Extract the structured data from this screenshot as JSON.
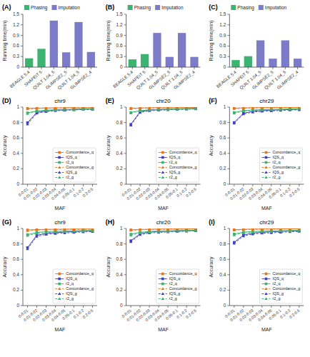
{
  "chart_data": [
    {
      "type": "bar",
      "annotations": [
        "(A)"
      ],
      "categories": [
        "BEAGLE 5.4",
        "SHAPEIT 5",
        "QUILT 1.04_5",
        "GLIMPSE2_5",
        "QUILT 1.04_5",
        "GLIMPSE2_4"
      ],
      "series": [
        {
          "name": "Phasing",
          "color": "#3CB371",
          "values": [
            0.25,
            0.52,
            0,
            0,
            0,
            0
          ]
        },
        {
          "name": "Imputation",
          "color": "#7B7BC8",
          "values": [
            0,
            0,
            1.32,
            0.42,
            1.28,
            0.43
          ]
        }
      ],
      "ylabel": "Running time(min)",
      "ylim": [
        0,
        1.5
      ],
      "yticks": [
        0,
        0.3,
        0.6,
        0.9,
        1.2,
        1.5
      ],
      "legend": "upper left",
      "grid": false
    },
    {
      "type": "bar",
      "annotations": [
        "(B)"
      ],
      "categories": [
        "BEAGLE 5.4",
        "SHAPEIT 5",
        "QUILT 1.04_5",
        "GLIMPSE2_5",
        "QUILT 1.04_5",
        "GLIMPSE2_4"
      ],
      "series": [
        {
          "name": "Phasing",
          "color": "#3CB371",
          "values": [
            0.22,
            0.37,
            0,
            0,
            0,
            0
          ]
        },
        {
          "name": "Imputation",
          "color": "#7B7BC8",
          "values": [
            0,
            0,
            0.97,
            0.29,
            0.97,
            0.29
          ]
        }
      ],
      "ylabel": "Running time(min)",
      "ylim": [
        0,
        1.5
      ],
      "yticks": [
        0,
        0.3,
        0.6,
        0.9,
        1.2,
        1.5
      ],
      "legend": "upper left",
      "grid": false
    },
    {
      "type": "bar",
      "annotations": [
        "(C)"
      ],
      "categories": [
        "BEAGLE 5.4",
        "SHAPEIT 5",
        "QUILT 1.04_5",
        "GLIMPSE2_5",
        "QUILT 1.04_5",
        "GLIMPSE2_4"
      ],
      "series": [
        {
          "name": "Phasing",
          "color": "#3CB371",
          "values": [
            0.2,
            0.31,
            0,
            0,
            0,
            0
          ]
        },
        {
          "name": "Imputation",
          "color": "#7B7BC8",
          "values": [
            0,
            0,
            0.76,
            0.24,
            0.76,
            0.24
          ]
        }
      ],
      "ylabel": "Running time(min)",
      "ylim": [
        0,
        1.5
      ],
      "yticks": [
        0,
        0.3,
        0.6,
        0.9,
        1.2,
        1.5
      ],
      "legend": "upper left",
      "grid": false
    },
    {
      "type": "line",
      "annotations": [
        "(D)"
      ],
      "title": "chr9",
      "categories": [
        "0-0.01",
        "0.01-0.02",
        "0.02-0.03",
        "0.03-0.04",
        "0.04-0.05",
        "0.05-0.1",
        "0.1-0.2",
        "0.2-0.5"
      ],
      "series": [
        {
          "name": "Concordance_q",
          "color": "#E8761A",
          "marker": "square",
          "line_style": "solid",
          "values": [
            0.983,
            0.987,
            0.989,
            0.99,
            0.991,
            0.992,
            0.993,
            0.993
          ]
        },
        {
          "name": "IQS_q",
          "color": "#4040C0",
          "marker": "square",
          "line_style": "solid",
          "values": [
            0.798,
            0.93,
            0.95,
            0.96,
            0.965,
            0.97,
            0.975,
            0.976
          ]
        },
        {
          "name": "r2_q",
          "color": "#3CB371",
          "marker": "square",
          "line_style": "solid",
          "values": [
            0.926,
            0.95,
            0.96,
            0.965,
            0.968,
            0.97,
            0.975,
            0.977
          ]
        },
        {
          "name": "Concordance_g",
          "color": "#E8761A",
          "marker": "triangle",
          "line_style": "dashed",
          "values": [
            0.976,
            0.982,
            0.986,
            0.988,
            0.989,
            0.99,
            0.991,
            0.992
          ]
        },
        {
          "name": "IQS_g",
          "color": "#4040C0",
          "marker": "triangle",
          "line_style": "dashed",
          "values": [
            0.78,
            0.92,
            0.942,
            0.952,
            0.958,
            0.963,
            0.968,
            0.97
          ]
        },
        {
          "name": "r2_g",
          "color": "#3CB371",
          "marker": "triangle",
          "line_style": "dashed",
          "values": [
            0.915,
            0.945,
            0.955,
            0.96,
            0.963,
            0.966,
            0.971,
            0.974
          ]
        }
      ],
      "xlabel": "MAF",
      "ylabel": "Accuracy",
      "ylim": [
        0,
        1
      ],
      "yticks": [
        0,
        0.2,
        0.4,
        0.6,
        0.8,
        1
      ],
      "legend": "lower right",
      "grid": false
    },
    {
      "type": "line",
      "annotations": [
        "(E)"
      ],
      "title": "chr20",
      "categories": [
        "0-0.01",
        "0.01-0.02",
        "0.02-0.03",
        "0.03-0.04",
        "0.04-0.05",
        "0.05-0.1",
        "0.1-0.2",
        "0.2-0.5"
      ],
      "series": [
        {
          "name": "Concordance_q",
          "color": "#E8761A",
          "marker": "square",
          "line_style": "solid",
          "values": [
            0.984,
            0.989,
            0.991,
            0.992,
            0.993,
            0.994,
            0.995,
            0.995
          ]
        },
        {
          "name": "IQS_q",
          "color": "#4040C0",
          "marker": "square",
          "line_style": "solid",
          "values": [
            0.776,
            0.94,
            0.96,
            0.968,
            0.972,
            0.976,
            0.98,
            0.982
          ]
        },
        {
          "name": "r2_q",
          "color": "#3CB371",
          "marker": "square",
          "line_style": "solid",
          "values": [
            0.93,
            0.955,
            0.965,
            0.97,
            0.972,
            0.975,
            0.978,
            0.98
          ]
        },
        {
          "name": "Concordance_g",
          "color": "#E8761A",
          "marker": "triangle",
          "line_style": "dashed",
          "values": [
            0.979,
            0.985,
            0.988,
            0.99,
            0.991,
            0.992,
            0.993,
            0.994
          ]
        },
        {
          "name": "IQS_g",
          "color": "#4040C0",
          "marker": "triangle",
          "line_style": "dashed",
          "values": [
            0.765,
            0.93,
            0.952,
            0.96,
            0.964,
            0.968,
            0.973,
            0.976
          ]
        },
        {
          "name": "r2_g",
          "color": "#3CB371",
          "marker": "triangle",
          "line_style": "dashed",
          "values": [
            0.922,
            0.95,
            0.96,
            0.965,
            0.967,
            0.97,
            0.974,
            0.977
          ]
        }
      ],
      "xlabel": "MAF",
      "ylabel": "Accuracy",
      "ylim": [
        0,
        1
      ],
      "yticks": [
        0,
        0.2,
        0.4,
        0.6,
        0.8,
        1
      ],
      "legend": "lower right",
      "grid": false
    },
    {
      "type": "line",
      "annotations": [
        "(F)"
      ],
      "title": "chr29",
      "categories": [
        "0-0.01",
        "0.01-0.02",
        "0.02-0.03",
        "0.03-0.04",
        "0.04-0.05",
        "0.05-0.1",
        "0.1-0.2",
        "0.2-0.5"
      ],
      "series": [
        {
          "name": "Concordance_q",
          "color": "#E8761A",
          "marker": "square",
          "line_style": "solid",
          "values": [
            0.986,
            0.99,
            0.992,
            0.993,
            0.994,
            0.995,
            0.995,
            0.996
          ]
        },
        {
          "name": "IQS_q",
          "color": "#4040C0",
          "marker": "square",
          "line_style": "solid",
          "values": [
            0.8,
            0.92,
            0.945,
            0.955,
            0.96,
            0.965,
            0.97,
            0.972
          ]
        },
        {
          "name": "r2_q",
          "color": "#3CB371",
          "marker": "square",
          "line_style": "solid",
          "values": [
            0.93,
            0.955,
            0.963,
            0.968,
            0.97,
            0.972,
            0.976,
            0.978
          ]
        },
        {
          "name": "Concordance_g",
          "color": "#E8761A",
          "marker": "triangle",
          "line_style": "dashed",
          "values": [
            0.98,
            0.986,
            0.989,
            0.991,
            0.992,
            0.993,
            0.994,
            0.994
          ]
        },
        {
          "name": "IQS_g",
          "color": "#4040C0",
          "marker": "triangle",
          "line_style": "dashed",
          "values": [
            0.79,
            0.91,
            0.935,
            0.945,
            0.95,
            0.956,
            0.962,
            0.965
          ]
        },
        {
          "name": "r2_g",
          "color": "#3CB371",
          "marker": "triangle",
          "line_style": "dashed",
          "values": [
            0.92,
            0.948,
            0.957,
            0.962,
            0.965,
            0.968,
            0.972,
            0.975
          ]
        }
      ],
      "xlabel": "MAF",
      "ylabel": "Accuracy",
      "ylim": [
        0,
        1
      ],
      "yticks": [
        0,
        0.2,
        0.4,
        0.6,
        0.8,
        1
      ],
      "legend": "lower right",
      "grid": false
    },
    {
      "type": "line",
      "annotations": [
        "(G)"
      ],
      "title": "chr9",
      "categories": [
        "0-0.01",
        "0.01-0.02",
        "0.02-0.03",
        "0.03-0.04",
        "0.04-0.05",
        "0.05-0.1",
        "0.1-0.2",
        "0.2-0.5"
      ],
      "series": [
        {
          "name": "Concordance_q",
          "color": "#E8761A",
          "marker": "square",
          "line_style": "solid",
          "values": [
            0.981,
            0.986,
            0.989,
            0.99,
            0.991,
            0.992,
            0.993,
            0.993
          ]
        },
        {
          "name": "IQS_q",
          "color": "#4040C0",
          "marker": "square",
          "line_style": "solid",
          "values": [
            0.752,
            0.912,
            0.936,
            0.946,
            0.953,
            0.959,
            0.966,
            0.969
          ]
        },
        {
          "name": "r2_q",
          "color": "#3CB371",
          "marker": "square",
          "line_style": "solid",
          "values": [
            0.921,
            0.948,
            0.958,
            0.963,
            0.966,
            0.969,
            0.973,
            0.975
          ]
        },
        {
          "name": "Concordance_g",
          "color": "#E8761A",
          "marker": "triangle",
          "line_style": "dashed",
          "values": [
            0.972,
            0.98,
            0.983,
            0.985,
            0.987,
            0.988,
            0.99,
            0.99
          ]
        },
        {
          "name": "IQS_g",
          "color": "#4040C0",
          "marker": "triangle",
          "line_style": "dashed",
          "values": [
            0.735,
            0.896,
            0.923,
            0.934,
            0.941,
            0.948,
            0.955,
            0.959
          ]
        },
        {
          "name": "r2_g",
          "color": "#3CB371",
          "marker": "triangle",
          "line_style": "dashed",
          "values": [
            0.908,
            0.937,
            0.948,
            0.954,
            0.957,
            0.961,
            0.966,
            0.969
          ]
        }
      ],
      "xlabel": "MAF",
      "ylabel": "Accuracy",
      "ylim": [
        0,
        1
      ],
      "yticks": [
        0,
        0.2,
        0.4,
        0.6,
        0.8,
        1
      ],
      "legend": "lower right",
      "grid": false
    },
    {
      "type": "line",
      "annotations": [
        "(H)"
      ],
      "title": "chr20",
      "categories": [
        "0-0.01",
        "0.01-0.02",
        "0.02-0.03",
        "0.03-0.04",
        "0.04-0.05",
        "0.05-0.1",
        "0.1-0.2",
        "0.2-0.5"
      ],
      "series": [
        {
          "name": "Concordance_q",
          "color": "#E8761A",
          "marker": "square",
          "line_style": "solid",
          "values": [
            0.982,
            0.988,
            0.99,
            0.992,
            0.993,
            0.994,
            0.994,
            0.995
          ]
        },
        {
          "name": "IQS_q",
          "color": "#4040C0",
          "marker": "square",
          "line_style": "solid",
          "values": [
            0.841,
            0.931,
            0.953,
            0.961,
            0.966,
            0.971,
            0.976,
            0.978
          ]
        },
        {
          "name": "r2_q",
          "color": "#3CB371",
          "marker": "square",
          "line_style": "solid",
          "values": [
            0.926,
            0.951,
            0.961,
            0.966,
            0.968,
            0.971,
            0.975,
            0.977
          ]
        },
        {
          "name": "Concordance_g",
          "color": "#E8761A",
          "marker": "triangle",
          "line_style": "dashed",
          "values": [
            0.976,
            0.983,
            0.986,
            0.988,
            0.989,
            0.991,
            0.992,
            0.992
          ]
        },
        {
          "name": "IQS_g",
          "color": "#4040C0",
          "marker": "triangle",
          "line_style": "dashed",
          "values": [
            0.827,
            0.919,
            0.941,
            0.949,
            0.954,
            0.959,
            0.964,
            0.968
          ]
        },
        {
          "name": "r2_g",
          "color": "#3CB371",
          "marker": "triangle",
          "line_style": "dashed",
          "values": [
            0.913,
            0.941,
            0.951,
            0.957,
            0.959,
            0.963,
            0.967,
            0.97
          ]
        }
      ],
      "xlabel": "MAF",
      "ylabel": "Accuracy",
      "ylim": [
        0,
        1
      ],
      "yticks": [
        0,
        0.2,
        0.4,
        0.6,
        0.8,
        1
      ],
      "legend": "lower right",
      "grid": false
    },
    {
      "type": "line",
      "annotations": [
        "(I)"
      ],
      "title": "chr29",
      "categories": [
        "0-0.01",
        "0.01-0.02",
        "0.02-0.03",
        "0.03-0.04",
        "0.04-0.05",
        "0.05-0.1",
        "0.1-0.2",
        "0.2-0.5"
      ],
      "series": [
        {
          "name": "Concordance_q",
          "color": "#E8761A",
          "marker": "square",
          "line_style": "solid",
          "values": [
            0.984,
            0.99,
            0.992,
            0.993,
            0.994,
            0.995,
            0.995,
            0.996
          ]
        },
        {
          "name": "IQS_q",
          "color": "#4040C0",
          "marker": "square",
          "line_style": "solid",
          "values": [
            0.82,
            0.915,
            0.94,
            0.95,
            0.956,
            0.962,
            0.968,
            0.97
          ]
        },
        {
          "name": "r2_q",
          "color": "#3CB371",
          "marker": "square",
          "line_style": "solid",
          "values": [
            0.928,
            0.952,
            0.96,
            0.965,
            0.968,
            0.971,
            0.974,
            0.976
          ]
        },
        {
          "name": "Concordance_g",
          "color": "#E8761A",
          "marker": "triangle",
          "line_style": "dashed",
          "values": [
            0.978,
            0.985,
            0.988,
            0.99,
            0.991,
            0.992,
            0.993,
            0.994
          ]
        },
        {
          "name": "IQS_g",
          "color": "#4040C0",
          "marker": "triangle",
          "line_style": "dashed",
          "values": [
            0.806,
            0.902,
            0.928,
            0.938,
            0.944,
            0.95,
            0.957,
            0.961
          ]
        },
        {
          "name": "r2_g",
          "color": "#3CB371",
          "marker": "triangle",
          "line_style": "dashed",
          "values": [
            0.915,
            0.942,
            0.951,
            0.957,
            0.96,
            0.963,
            0.967,
            0.97
          ]
        }
      ],
      "xlabel": "MAF",
      "ylabel": "Accuracy",
      "ylim": [
        0,
        1
      ],
      "yticks": [
        0,
        0.2,
        0.4,
        0.6,
        0.8,
        1
      ],
      "legend": "lower right",
      "grid": false
    }
  ]
}
